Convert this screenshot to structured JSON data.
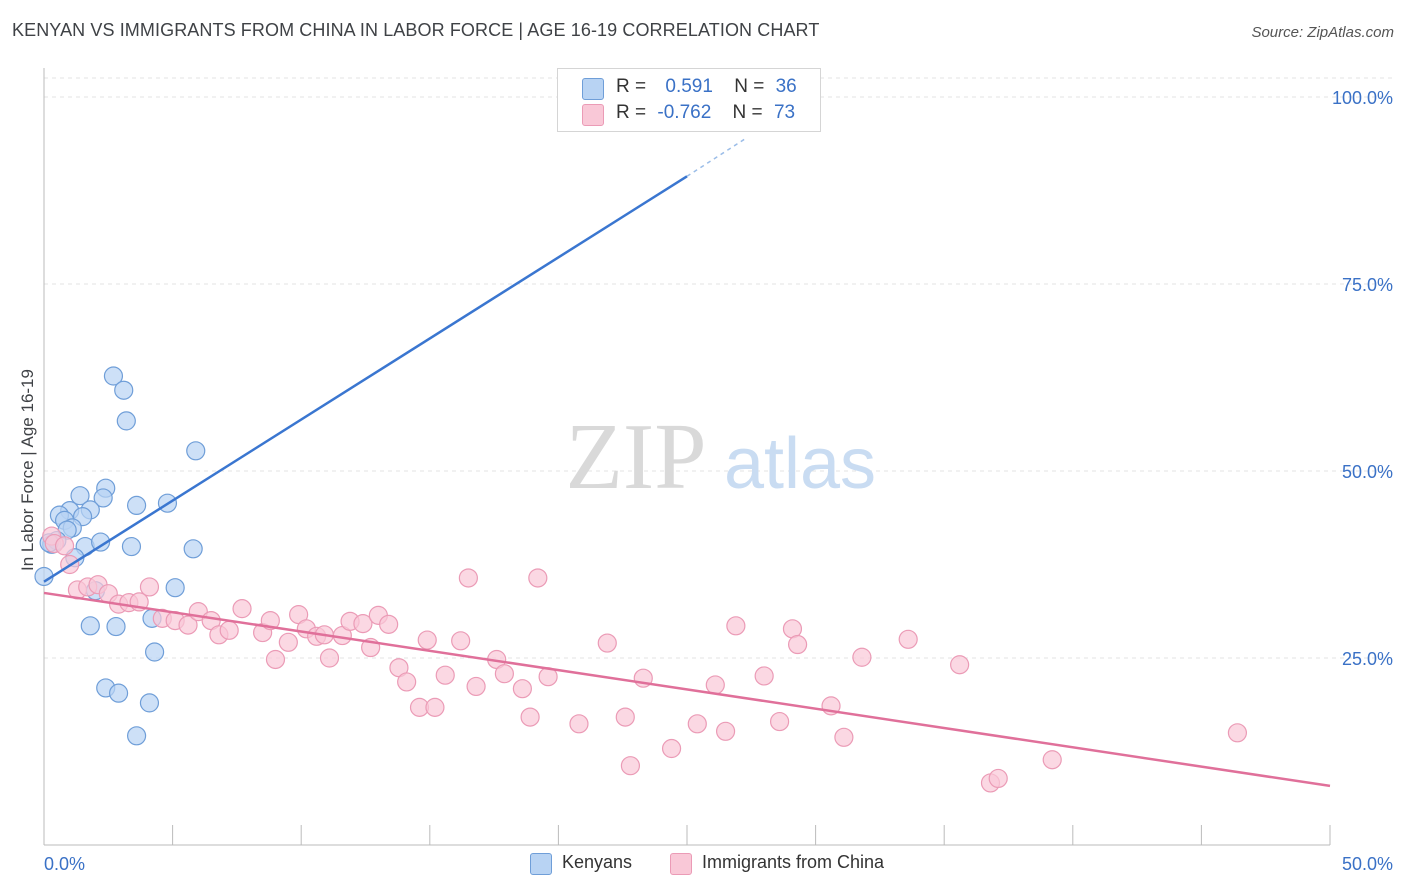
{
  "header": {
    "title": "KENYAN VS IMMIGRANTS FROM CHINA IN LABOR FORCE | AGE 16-19 CORRELATION CHART",
    "source": "Source: ZipAtlas.com"
  },
  "legend_top": {
    "rows": [
      {
        "r_label": "R =",
        "r_value": "0.591",
        "n_label": "N =",
        "n_value": "36",
        "color": "#a8c8f0"
      },
      {
        "r_label": "R =",
        "r_value": "-0.762",
        "n_label": "N =",
        "n_value": "73",
        "color": "#f7b6c8"
      }
    ]
  },
  "legend_bottom": {
    "items": [
      {
        "label": "Kenyans",
        "color": "#a8c8f0"
      },
      {
        "label": "Immigrants from China",
        "color": "#f7b6c8"
      }
    ]
  },
  "watermark": {
    "zip": "ZIP",
    "atlas": "atlas"
  },
  "chart_data": {
    "type": "scatter",
    "title": "KENYAN VS IMMIGRANTS FROM CHINA IN LABOR FORCE | AGE 16-19 CORRELATION CHART",
    "ylabel": "In Labor Force | Age 16-19",
    "xlabel": "",
    "xlim": [
      0,
      50
    ],
    "ylim": [
      0,
      104
    ],
    "x_tick_labels": [
      "0.0%",
      "50.0%"
    ],
    "y_ticks": [
      25,
      50,
      75,
      100
    ],
    "y_tick_labels": [
      "25.0%",
      "50.0%",
      "75.0%",
      "100.0%"
    ],
    "grid": true,
    "series": [
      {
        "name": "Kenyans",
        "color": "#3a76d0",
        "fill": "#b8d3f3",
        "stroke": "#6f9ed8",
        "trendline": {
          "x": [
            0,
            25.0
          ],
          "y": [
            35.2,
            89.4
          ],
          "dashed_to": {
            "x": 27.3,
            "y": 94.5
          }
        },
        "points": [
          {
            "x": 2.7,
            "y": 62.7
          },
          {
            "x": 3.1,
            "y": 60.8
          },
          {
            "x": 3.2,
            "y": 56.7
          },
          {
            "x": 5.9,
            "y": 52.7
          },
          {
            "x": 2.4,
            "y": 47.7
          },
          {
            "x": 1.4,
            "y": 46.7
          },
          {
            "x": 2.3,
            "y": 46.4
          },
          {
            "x": 3.6,
            "y": 45.4
          },
          {
            "x": 4.8,
            "y": 45.7
          },
          {
            "x": 1.0,
            "y": 44.7
          },
          {
            "x": 1.8,
            "y": 44.8
          },
          {
            "x": 0.6,
            "y": 44.1
          },
          {
            "x": 0.8,
            "y": 43.4
          },
          {
            "x": 1.5,
            "y": 43.9
          },
          {
            "x": 1.1,
            "y": 42.4
          },
          {
            "x": 0.9,
            "y": 42.1
          },
          {
            "x": 0.3,
            "y": 40.2
          },
          {
            "x": 0.5,
            "y": 40.7
          },
          {
            "x": 1.6,
            "y": 39.9
          },
          {
            "x": 2.2,
            "y": 40.5
          },
          {
            "x": 3.4,
            "y": 39.9
          },
          {
            "x": 5.8,
            "y": 39.6
          },
          {
            "x": 1.2,
            "y": 38.4
          },
          {
            "x": 0.0,
            "y": 35.9
          },
          {
            "x": 2.0,
            "y": 34.0
          },
          {
            "x": 5.1,
            "y": 34.4
          },
          {
            "x": 1.8,
            "y": 29.3
          },
          {
            "x": 2.8,
            "y": 29.2
          },
          {
            "x": 4.2,
            "y": 30.3
          },
          {
            "x": 4.3,
            "y": 25.8
          },
          {
            "x": 2.4,
            "y": 21.0
          },
          {
            "x": 2.9,
            "y": 20.3
          },
          {
            "x": 4.1,
            "y": 19.0
          },
          {
            "x": 3.6,
            "y": 14.6
          },
          {
            "x": 24.4,
            "y": 100.3
          },
          {
            "x": 0.2,
            "y": 40.4
          }
        ]
      },
      {
        "name": "Immigrants from China",
        "color": "#e0709a",
        "fill": "#f9c8d7",
        "stroke": "#eb9bb6",
        "trendline": {
          "x": [
            0,
            50
          ],
          "y": [
            33.7,
            7.9
          ]
        },
        "points": [
          {
            "x": 0.3,
            "y": 41.3
          },
          {
            "x": 0.4,
            "y": 40.3
          },
          {
            "x": 0.8,
            "y": 40.0
          },
          {
            "x": 1.0,
            "y": 37.5
          },
          {
            "x": 1.3,
            "y": 34.1
          },
          {
            "x": 1.7,
            "y": 34.5
          },
          {
            "x": 2.1,
            "y": 34.8
          },
          {
            "x": 2.5,
            "y": 33.6
          },
          {
            "x": 2.9,
            "y": 32.2
          },
          {
            "x": 3.3,
            "y": 32.4
          },
          {
            "x": 3.7,
            "y": 32.5
          },
          {
            "x": 4.1,
            "y": 34.5
          },
          {
            "x": 4.6,
            "y": 30.3
          },
          {
            "x": 5.1,
            "y": 30.0
          },
          {
            "x": 5.6,
            "y": 29.4
          },
          {
            "x": 6.0,
            "y": 31.2
          },
          {
            "x": 6.5,
            "y": 30.0
          },
          {
            "x": 6.8,
            "y": 28.1
          },
          {
            "x": 7.2,
            "y": 28.7
          },
          {
            "x": 7.7,
            "y": 31.6
          },
          {
            "x": 8.5,
            "y": 28.4
          },
          {
            "x": 8.8,
            "y": 30.0
          },
          {
            "x": 9.0,
            "y": 24.8
          },
          {
            "x": 9.5,
            "y": 27.1
          },
          {
            "x": 9.9,
            "y": 30.8
          },
          {
            "x": 10.2,
            "y": 28.9
          },
          {
            "x": 10.6,
            "y": 27.9
          },
          {
            "x": 10.9,
            "y": 28.1
          },
          {
            "x": 11.1,
            "y": 25.0
          },
          {
            "x": 11.6,
            "y": 28.0
          },
          {
            "x": 11.9,
            "y": 29.9
          },
          {
            "x": 12.4,
            "y": 29.6
          },
          {
            "x": 12.7,
            "y": 26.4
          },
          {
            "x": 13.0,
            "y": 30.7
          },
          {
            "x": 13.4,
            "y": 29.5
          },
          {
            "x": 13.8,
            "y": 23.7
          },
          {
            "x": 14.1,
            "y": 21.8
          },
          {
            "x": 14.6,
            "y": 18.4
          },
          {
            "x": 14.9,
            "y": 27.4
          },
          {
            "x": 15.2,
            "y": 18.4
          },
          {
            "x": 15.6,
            "y": 22.7
          },
          {
            "x": 16.2,
            "y": 27.3
          },
          {
            "x": 16.5,
            "y": 35.7
          },
          {
            "x": 16.8,
            "y": 21.2
          },
          {
            "x": 17.6,
            "y": 24.8
          },
          {
            "x": 17.9,
            "y": 22.9
          },
          {
            "x": 18.6,
            "y": 20.9
          },
          {
            "x": 18.9,
            "y": 17.1
          },
          {
            "x": 19.2,
            "y": 35.7
          },
          {
            "x": 19.6,
            "y": 22.5
          },
          {
            "x": 20.8,
            "y": 16.2
          },
          {
            "x": 21.9,
            "y": 27.0
          },
          {
            "x": 22.6,
            "y": 17.1
          },
          {
            "x": 22.8,
            "y": 10.6
          },
          {
            "x": 23.3,
            "y": 22.3
          },
          {
            "x": 24.4,
            "y": 12.9
          },
          {
            "x": 25.4,
            "y": 16.2
          },
          {
            "x": 26.1,
            "y": 21.4
          },
          {
            "x": 26.5,
            "y": 15.2
          },
          {
            "x": 26.9,
            "y": 29.3
          },
          {
            "x": 28.0,
            "y": 22.6
          },
          {
            "x": 28.6,
            "y": 16.5
          },
          {
            "x": 29.1,
            "y": 28.9
          },
          {
            "x": 29.3,
            "y": 26.8
          },
          {
            "x": 30.6,
            "y": 18.6
          },
          {
            "x": 31.1,
            "y": 14.4
          },
          {
            "x": 31.8,
            "y": 25.1
          },
          {
            "x": 33.6,
            "y": 27.5
          },
          {
            "x": 35.6,
            "y": 24.1
          },
          {
            "x": 36.8,
            "y": 8.3
          },
          {
            "x": 37.1,
            "y": 8.9
          },
          {
            "x": 39.2,
            "y": 11.4
          },
          {
            "x": 46.4,
            "y": 15.0
          }
        ]
      }
    ]
  }
}
